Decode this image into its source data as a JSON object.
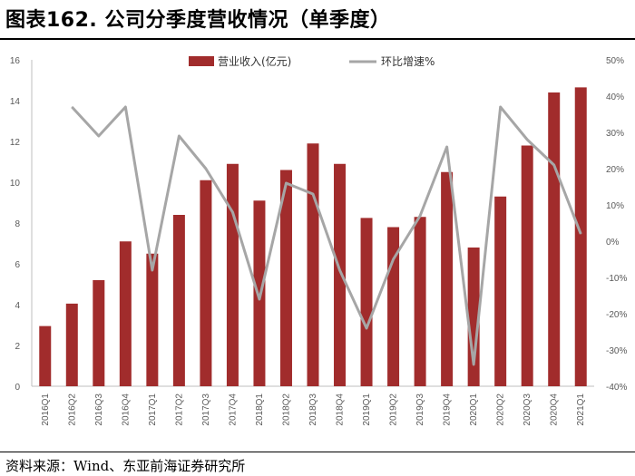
{
  "title": "图表162. 公司分季度营收情况（单季度）",
  "source": "资料来源：Wind、东亚前海证券研究所",
  "colors": {
    "bar": "#a12c2c",
    "line": "#a6a6a6",
    "axis": "#bfbfbf"
  },
  "chart_data": {
    "type": "bar+line",
    "categories": [
      "2016Q1",
      "2016Q2",
      "2016Q3",
      "2016Q4",
      "2017Q1",
      "2017Q2",
      "2017Q3",
      "2017Q4",
      "2018Q1",
      "2018Q2",
      "2018Q3",
      "2018Q4",
      "2019Q1",
      "2019Q2",
      "2019Q3",
      "2019Q4",
      "2020Q1",
      "2020Q2",
      "2020Q3",
      "2020Q4",
      "2021Q1"
    ],
    "series": [
      {
        "name": "营业收入(亿元)",
        "type": "bar",
        "axis": "left",
        "values": [
          2.95,
          4.05,
          5.2,
          7.1,
          6.5,
          8.4,
          10.1,
          10.9,
          9.1,
          10.6,
          11.9,
          10.9,
          8.25,
          7.8,
          8.3,
          10.5,
          6.8,
          9.3,
          11.8,
          14.4,
          14.65
        ]
      },
      {
        "name": "环比增速%",
        "type": "line",
        "axis": "right",
        "values": [
          null,
          37,
          29,
          37,
          -8,
          29,
          20,
          8,
          -16,
          16,
          13,
          -8,
          -24,
          -5,
          7,
          26,
          -34,
          37,
          28,
          21,
          2
        ]
      }
    ],
    "left_axis": {
      "ylim": [
        0,
        16
      ],
      "ticks": [
        "0",
        "2",
        "4",
        "6",
        "8",
        "10",
        "12",
        "14",
        "16"
      ]
    },
    "right_axis": {
      "ylim": [
        -40,
        50
      ],
      "ticks": [
        "-40%",
        "-30%",
        "-20%",
        "-10%",
        "0%",
        "10%",
        "20%",
        "30%",
        "40%",
        "50%"
      ]
    },
    "legend": "top"
  }
}
